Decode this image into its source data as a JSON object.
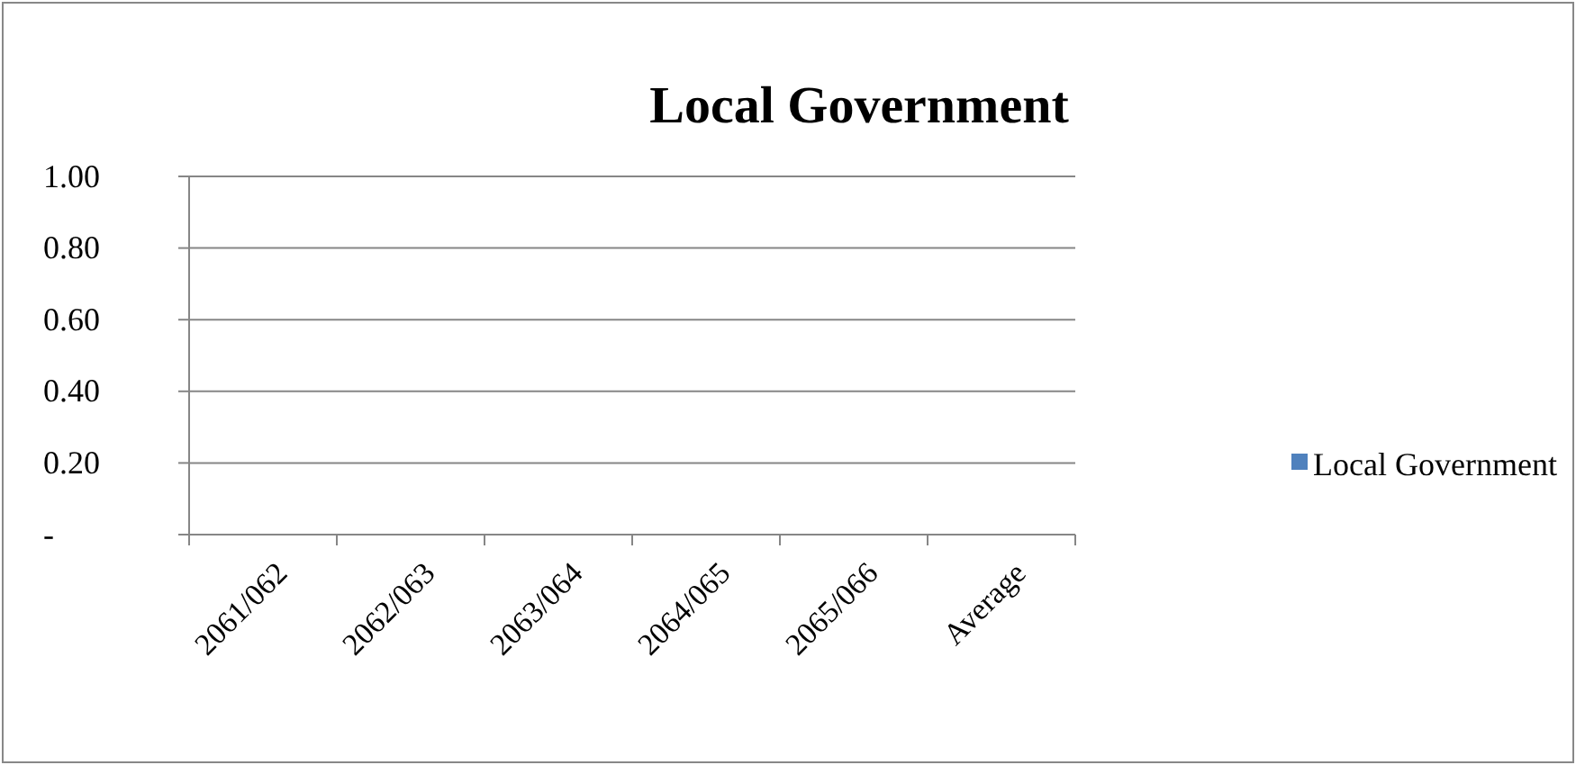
{
  "chart_data": {
    "type": "bar",
    "title": "Local Government",
    "categories": [
      "2061/062",
      "2062/063",
      "2063/064",
      "2064/065",
      "2065/066",
      "Average"
    ],
    "series": [
      {
        "name": "Local Government",
        "color": "#4f81bd",
        "values": [
          0,
          0,
          0,
          0,
          0,
          0
        ]
      }
    ],
    "ylim": [
      0,
      1
    ],
    "yticks": [
      {
        "value": 0,
        "label": "-"
      },
      {
        "value": 0.2,
        "label": "0.20"
      },
      {
        "value": 0.4,
        "label": "0.40"
      },
      {
        "value": 0.6,
        "label": "0.60"
      },
      {
        "value": 0.8,
        "label": "0.80"
      },
      {
        "value": 1,
        "label": "1.00"
      }
    ],
    "grid": "y",
    "legend": "right"
  }
}
